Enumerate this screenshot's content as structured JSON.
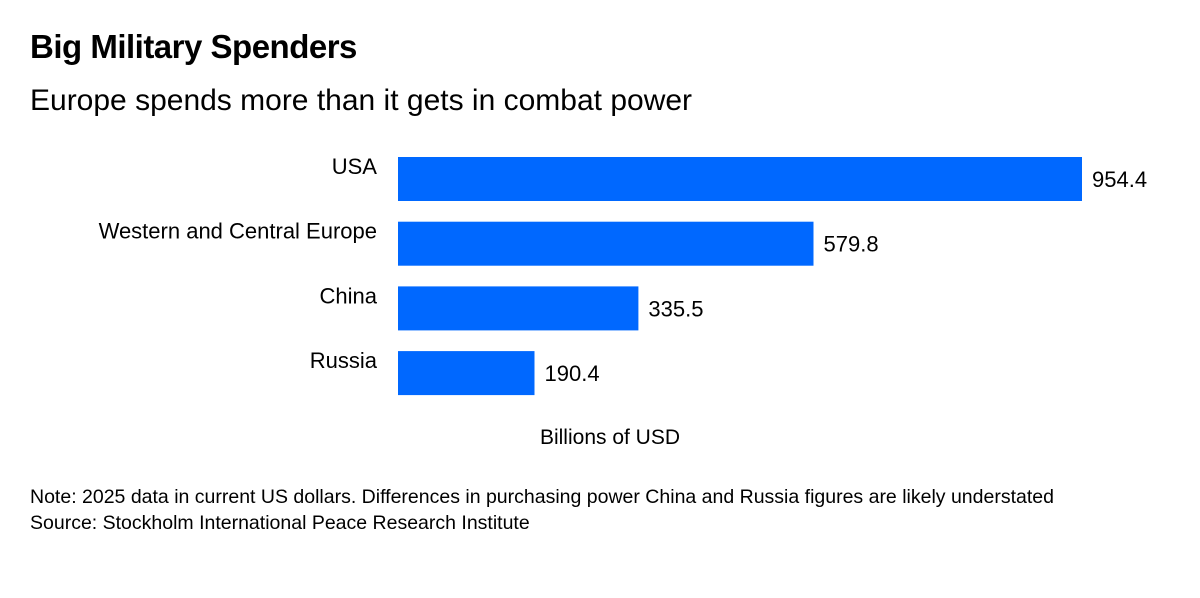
{
  "header": {
    "title": "Big Military Spenders",
    "subtitle": "Europe spends more than it gets in combat power"
  },
  "chart_data": {
    "type": "bar",
    "orientation": "horizontal",
    "title": "Big Military Spenders",
    "subtitle": "Europe spends more than it gets in combat power",
    "categories": [
      "USA",
      "Western and Central Europe",
      "China",
      "Russia"
    ],
    "values": [
      954.4,
      579.8,
      335.5,
      190.4
    ],
    "value_labels": [
      "954.4",
      "579.8",
      "335.5",
      "190.4"
    ],
    "xlabel": "Billions of USD",
    "ylabel": "",
    "xlim": [
      0,
      954.4
    ],
    "grid": false,
    "bar_color": "#0068ff"
  },
  "footer": {
    "note": "Note: 2025 data in current US dollars. Differences in purchasing power China and Russia figures are likely understated",
    "source": "Source: Stockholm International Peace Research Institute"
  }
}
